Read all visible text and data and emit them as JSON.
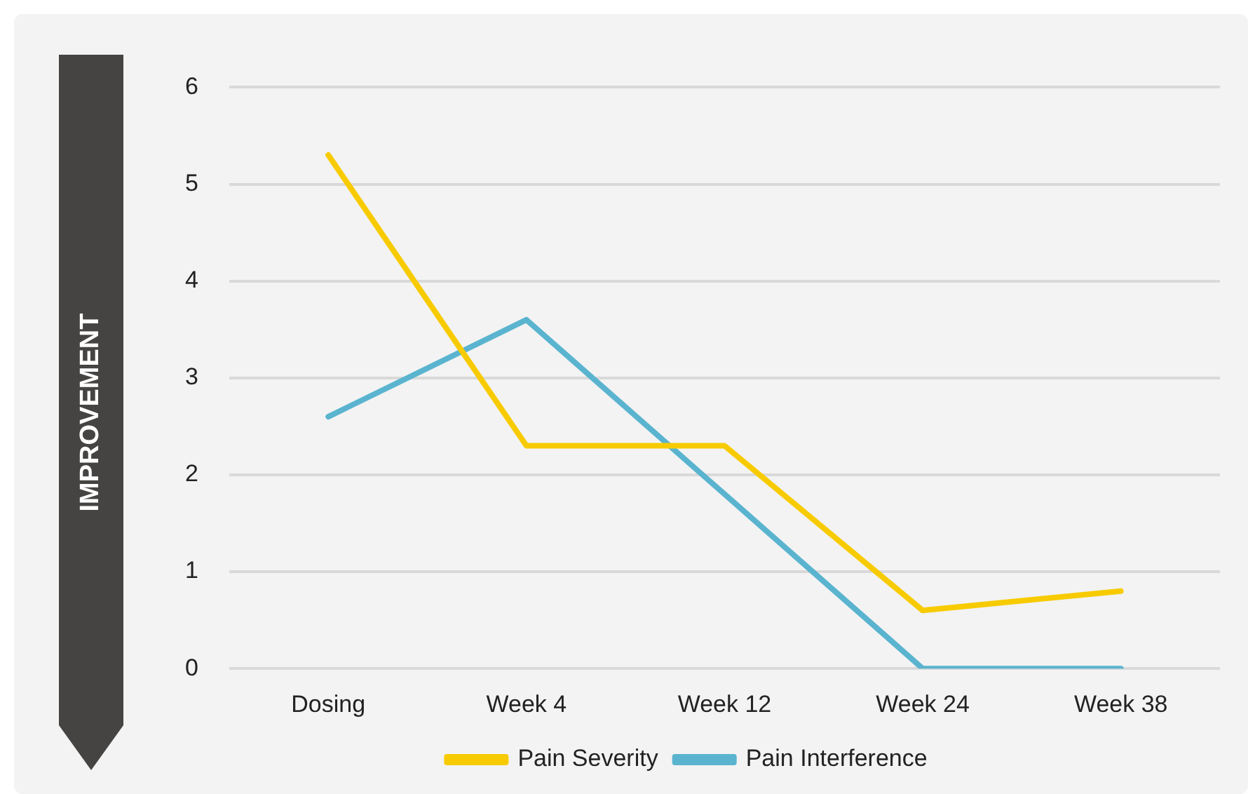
{
  "chart_data": {
    "type": "line",
    "ylabel": "IMPROVEMENT",
    "categories": [
      "Dosing",
      "Week 4",
      "Week 12",
      "Week 24",
      "Week 38"
    ],
    "series": [
      {
        "name": "Pain Severity",
        "color": "#f7cb00",
        "values": [
          5.3,
          2.3,
          2.3,
          0.6,
          0.8
        ]
      },
      {
        "name": "Pain Interference",
        "color": "#5ab4cf",
        "values": [
          2.6,
          3.6,
          1.8,
          0,
          0
        ]
      }
    ],
    "ylim": [
      0,
      6
    ],
    "yticks": [
      0,
      1,
      2,
      3,
      4,
      5,
      6
    ],
    "grid": "y",
    "legend": "bottom",
    "marker": "none",
    "line_style": "solid"
  }
}
